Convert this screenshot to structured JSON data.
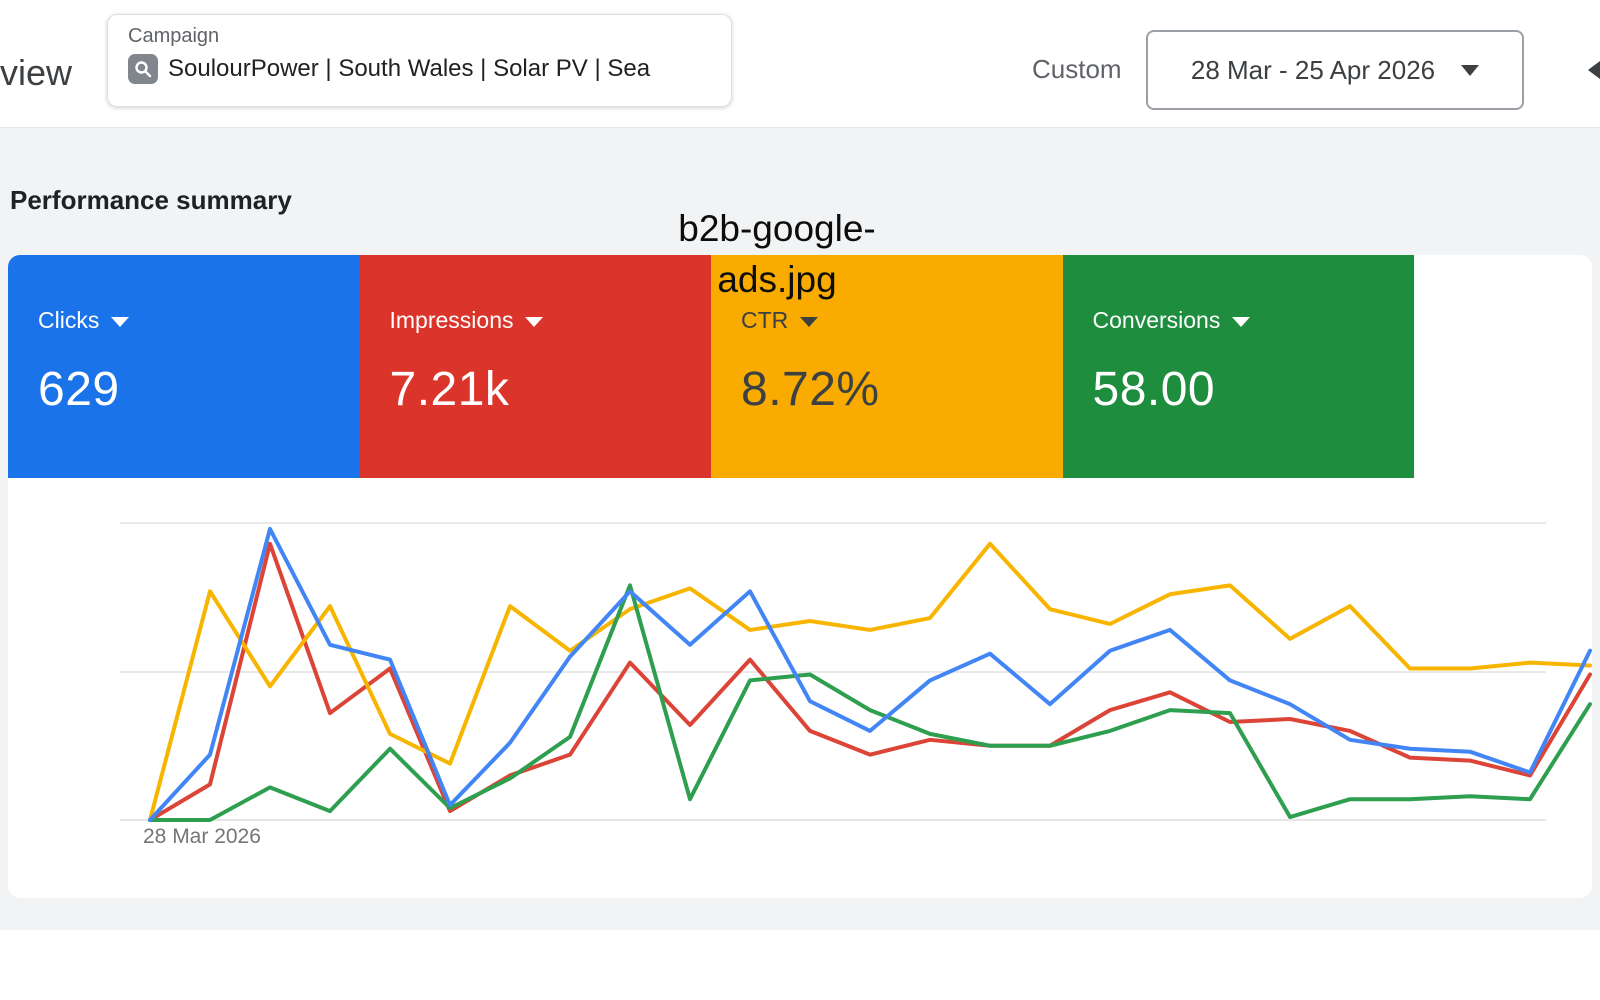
{
  "header": {
    "page_title_partial": "view",
    "campaign_selector": {
      "label": "Campaign",
      "value": "SoulourPower | South Wales | Solar PV | Sea",
      "icon": "search-icon"
    },
    "date_range": {
      "mode_label": "Custom",
      "value": "28 Mar - 25 Apr 2026"
    }
  },
  "section": {
    "title": "Performance summary"
  },
  "summary": {
    "cards": [
      {
        "metric": "Clicks",
        "label": "Clicks",
        "value": "629",
        "color": "#1A73E8",
        "text_color": "#FFFFFF"
      },
      {
        "metric": "Impressions",
        "label": "Impressions",
        "value": "7.21k",
        "color": "#DB352B",
        "text_color": "#FFFFFF"
      },
      {
        "metric": "CTR",
        "label": "CTR",
        "value": "8.72%",
        "color": "#F9AB00",
        "text_color": "#3C4043"
      },
      {
        "metric": "Conversions",
        "label": "Conversions",
        "value": "58.00",
        "color": "#1E8E3E",
        "text_color": "#FFFFFF"
      }
    ]
  },
  "watermark": {
    "line1": "b2b-google-",
    "line2": "ads.jpg"
  },
  "chart": {
    "first_x_tick_label": "28 Mar 2026"
  },
  "chart_data": {
    "type": "line",
    "x_range": [
      "28 Mar 2026",
      "25 Apr 2026"
    ],
    "x_tick_labels_visible": [
      "28 Mar 2026"
    ],
    "y_axis_labels_visible": false,
    "grid": true,
    "legend_position": "none (colors match summary cards)",
    "unit": "percent of plot height between bottom and top gridline (no numeric axis shown)",
    "series": [
      {
        "name": "Clicks",
        "color": "#4285F4",
        "values": [
          0,
          22,
          98,
          59,
          54,
          5,
          26,
          55,
          77,
          59,
          77,
          40,
          30,
          47,
          56,
          39,
          57,
          64,
          47,
          39,
          27,
          24,
          23,
          16,
          57
        ]
      },
      {
        "name": "Impressions",
        "color": "#DB4437",
        "values": [
          0,
          12,
          93,
          36,
          51,
          3,
          15,
          22,
          53,
          32,
          54,
          30,
          22,
          27,
          25,
          25,
          37,
          43,
          33,
          34,
          30,
          21,
          20,
          15,
          49
        ]
      },
      {
        "name": "CTR",
        "color": "#F7B500",
        "values": [
          0,
          77,
          45,
          72,
          29,
          19,
          72,
          57,
          71,
          78,
          64,
          67,
          64,
          68,
          93,
          71,
          66,
          76,
          79,
          61,
          72,
          51,
          51,
          53,
          52
        ]
      },
      {
        "name": "Conversions",
        "color": "#2E9E4F",
        "values": [
          0,
          0,
          11,
          3,
          24,
          4,
          14,
          28,
          79,
          7,
          47,
          49,
          37,
          29,
          25,
          25,
          30,
          37,
          36,
          1,
          7,
          7,
          8,
          7,
          39
        ]
      }
    ]
  }
}
